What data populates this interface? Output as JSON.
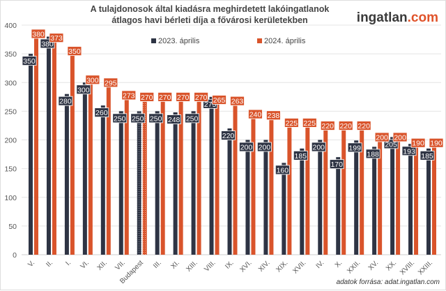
{
  "chart_data": {
    "type": "bar",
    "title": "A tulajdonosok által kiadásra meghirdetett lakóingatlanok átlagos havi bérleti díja a fővárosi kerületekben",
    "categories": [
      "V.",
      "II.",
      "I.",
      "VI.",
      "XII.",
      "VII.",
      "Budapest",
      "III.",
      "XI.",
      "XIII.",
      "VIII.",
      "IX.",
      "XVI.",
      "XIV.",
      "XIX.",
      "XVII.",
      "IV.",
      "X.",
      "XXII.",
      "XV.",
      "XX.",
      "XVIII.",
      "XXIII."
    ],
    "series": [
      {
        "name": "2023. április",
        "color": "#2e3444",
        "values": [
          350,
          380,
          280,
          300,
          260,
          250,
          250,
          250,
          248,
          250,
          275,
          220,
          200,
          200,
          160,
          185,
          200,
          170,
          199,
          188,
          205,
          193,
          185
        ]
      },
      {
        "name": "2024. április",
        "color": "#d9542b",
        "values": [
          380,
          373,
          350,
          300,
          295,
          273,
          270,
          270,
          270,
          270,
          265,
          263,
          240,
          238,
          225,
          225,
          220,
          220,
          220,
          200,
          200,
          190,
          190
        ]
      }
    ],
    "highlighted_category": "Budapest",
    "ylim": [
      0,
      400
    ],
    "yticks": [
      0,
      50,
      100,
      150,
      200,
      250,
      300,
      350,
      400
    ],
    "grid": true,
    "legend": "top-center",
    "xlabel": "",
    "ylabel": ""
  },
  "logo": {
    "main": "ingatlan",
    "suffix": ".com"
  },
  "source": "adatok forrása: adat.ingatlan.com"
}
